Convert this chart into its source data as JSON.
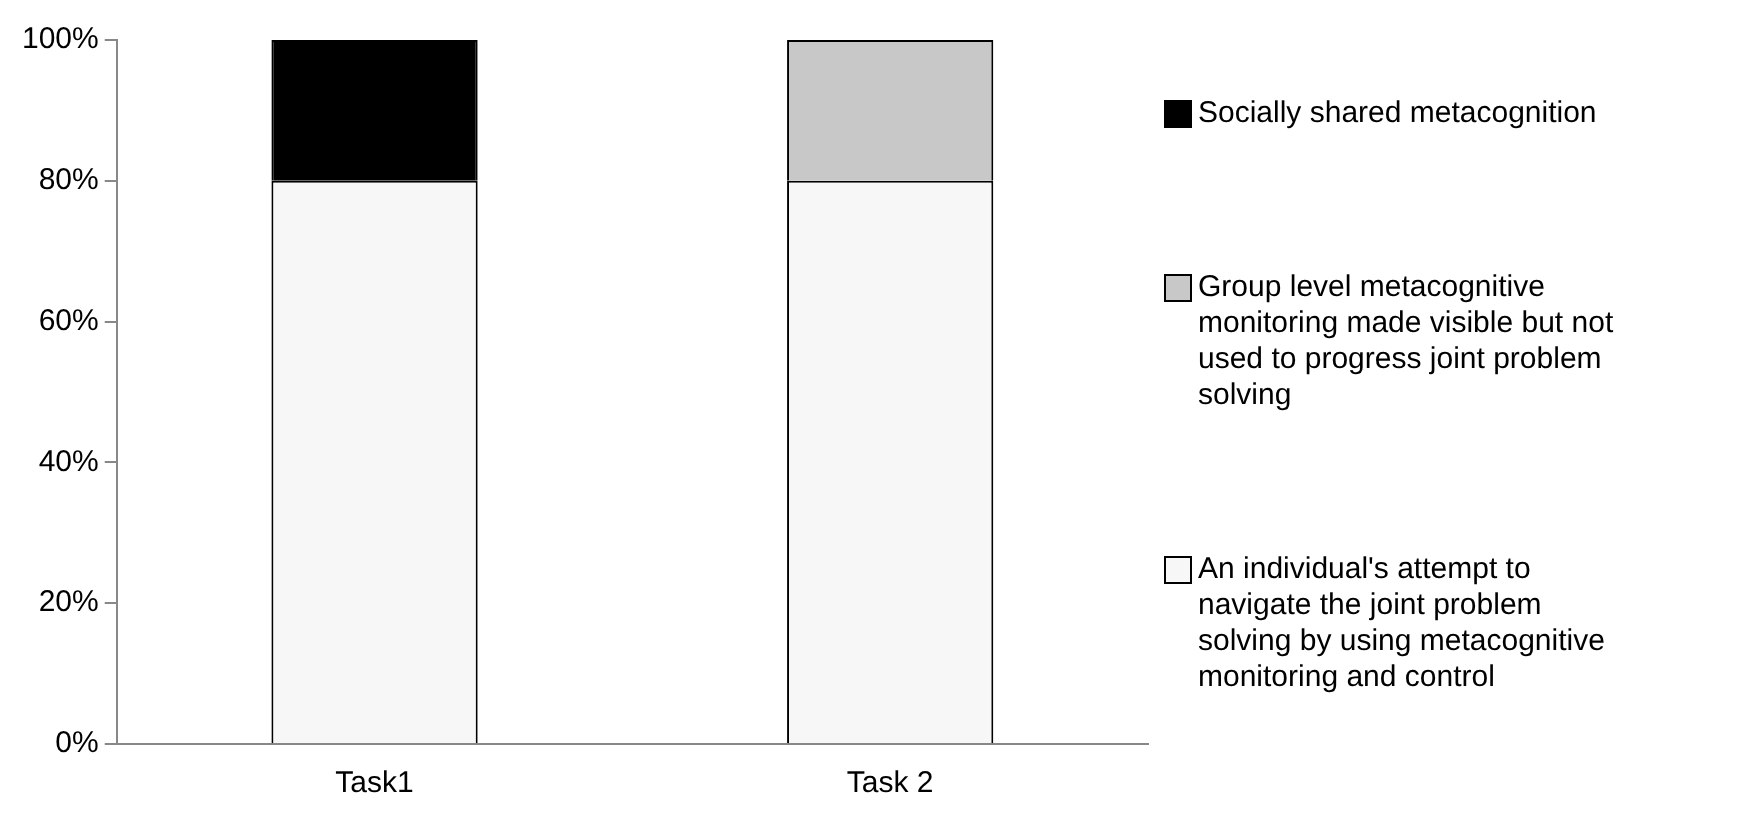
{
  "chart_data": {
    "type": "bar",
    "stacked": true,
    "categories": [
      "Task1",
      "Task 2"
    ],
    "series": [
      {
        "name": "An individual's attempt to navigate the joint problem solving by using metacognitive monitoring and control",
        "color": "#f7f7f7",
        "values": [
          80,
          80
        ]
      },
      {
        "name": "Group level metacognitive monitoring made visible but not used to progress joint problem solving",
        "color": "#c8c8c8",
        "values": [
          0,
          20
        ]
      },
      {
        "name": "Socially shared metacognition",
        "color": "#000000",
        "values": [
          20,
          0
        ]
      }
    ],
    "ylim": [
      0,
      100
    ],
    "yticks": [
      {
        "value": 0,
        "label": "0%"
      },
      {
        "value": 20,
        "label": "20%"
      },
      {
        "value": 40,
        "label": "40%"
      },
      {
        "value": 60,
        "label": "60%"
      },
      {
        "value": 80,
        "label": "80%"
      },
      {
        "value": 100,
        "label": "100%"
      }
    ],
    "grid": false,
    "legend": "right"
  }
}
